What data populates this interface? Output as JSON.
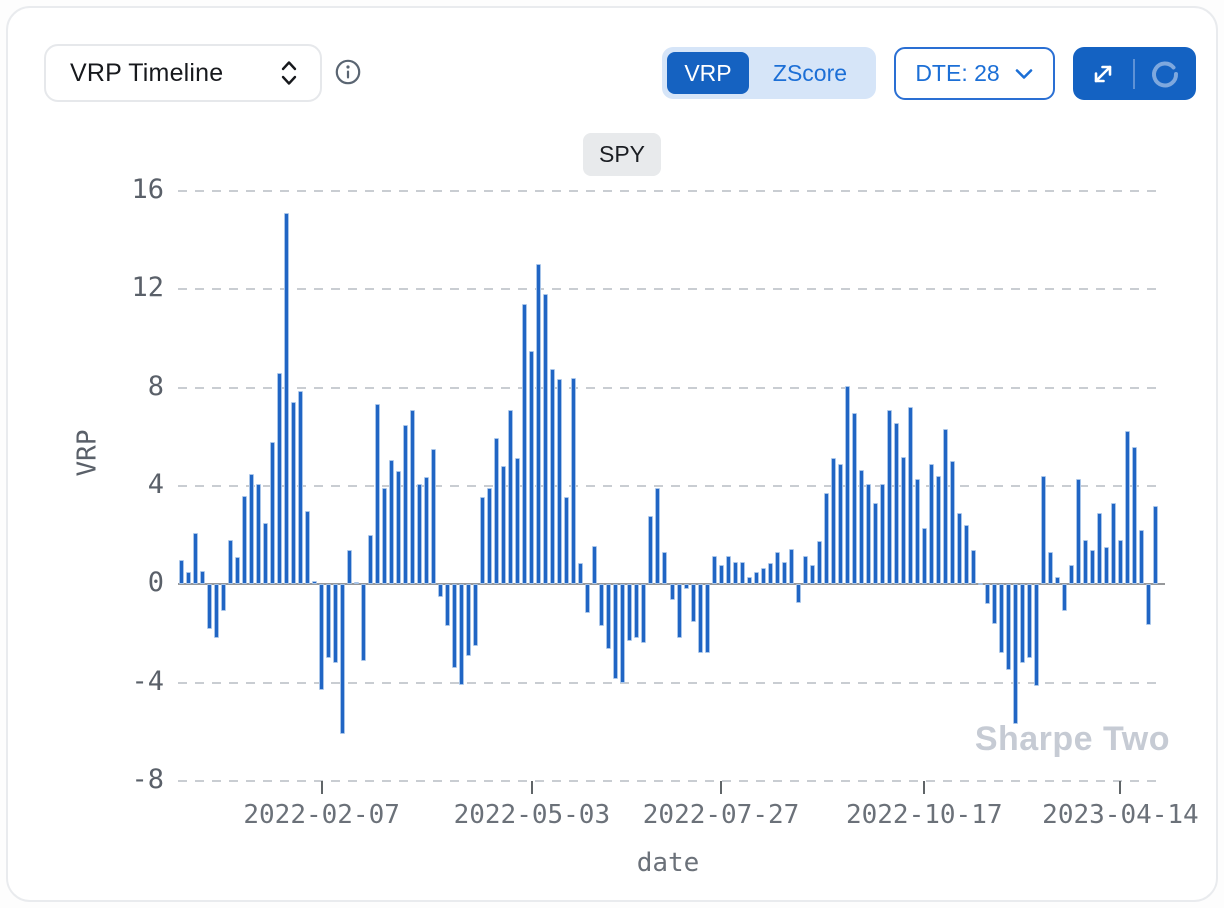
{
  "header": {
    "metric_selector": {
      "label": "VRP Timeline"
    },
    "view_toggle": {
      "options": [
        "VRP",
        "ZScore"
      ],
      "active": "VRP"
    },
    "dte_dropdown": {
      "label": "DTE: 28"
    }
  },
  "colors": {
    "accent_blue": "#1562c1",
    "bar_blue": "#2065c4",
    "toggle_bg": "#d6e5f8",
    "link_blue": "#1c6fd6",
    "gridline": "#c9cdd2",
    "watermark": "#c6cbd4"
  },
  "chart_data": {
    "type": "bar",
    "title": "SPY",
    "xlabel": "date",
    "ylabel": "VRP",
    "ylim": [
      -8,
      16
    ],
    "y_ticks": [
      16,
      12,
      8,
      4,
      0,
      -4,
      -8
    ],
    "grid": "dashed-horizontal",
    "legend_position": "none",
    "bar_color": "#2065c4",
    "watermark": "Sharpe Two",
    "x_ticks": [
      {
        "label": "2022-02-07",
        "index": 20
      },
      {
        "label": "2022-05-03",
        "index": 50
      },
      {
        "label": "2022-07-27",
        "index": 77
      },
      {
        "label": "2022-10-17",
        "index": 106
      },
      {
        "label": "2023-04-14",
        "index": 134
      }
    ],
    "values": [
      1.0,
      0.5,
      2.1,
      0.55,
      -1.8,
      -2.2,
      -1.1,
      1.8,
      1.1,
      3.6,
      4.5,
      4.1,
      2.5,
      5.8,
      8.6,
      15.1,
      7.4,
      7.85,
      3.0,
      0.15,
      -4.3,
      -3.0,
      -3.2,
      -6.1,
      1.4,
      0.1,
      -3.1,
      2.0,
      7.35,
      3.9,
      5.05,
      4.6,
      6.5,
      7.1,
      4.1,
      4.35,
      5.5,
      -0.5,
      -1.7,
      -3.4,
      -4.1,
      -2.9,
      -2.5,
      3.55,
      3.9,
      5.95,
      4.8,
      7.1,
      5.15,
      11.4,
      9.5,
      13.05,
      11.8,
      8.75,
      8.35,
      3.55,
      8.4,
      0.85,
      -1.15,
      1.55,
      -1.7,
      -2.65,
      -3.85,
      -4.0,
      -2.3,
      -2.2,
      -2.4,
      2.8,
      3.9,
      1.3,
      -0.65,
      -2.2,
      -0.2,
      -1.55,
      -2.8,
      -2.8,
      1.15,
      0.8,
      1.15,
      0.9,
      0.9,
      0.3,
      0.5,
      0.65,
      0.85,
      1.3,
      0.9,
      1.45,
      -0.75,
      1.15,
      0.8,
      1.75,
      3.7,
      5.15,
      4.9,
      8.05,
      6.95,
      4.65,
      4.1,
      3.3,
      4.1,
      7.1,
      6.55,
      5.2,
      7.2,
      4.3,
      2.3,
      4.9,
      4.4,
      6.3,
      5.0,
      2.9,
      2.4,
      1.4,
      0.05,
      -0.8,
      -1.6,
      -2.8,
      -3.5,
      -5.7,
      -3.2,
      -3.0,
      -4.15,
      4.4,
      1.3,
      0.3,
      -1.1,
      0.8,
      4.3,
      1.8,
      1.4,
      2.9,
      1.5,
      3.3,
      1.8,
      6.25,
      5.6,
      2.2,
      -1.65,
      3.2
    ]
  }
}
